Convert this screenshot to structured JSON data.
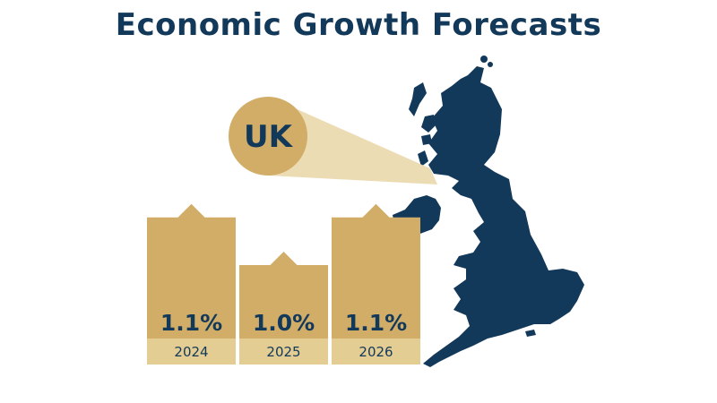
{
  "title": "Economic Growth Forecasts",
  "region": "UK",
  "colors": {
    "title": "#12385a",
    "bar": "#d1ad68",
    "bar_label_band": "#e3cd92",
    "map": "#12385a",
    "callout": "#d1ad68",
    "callout_beam": "#ecdcb4"
  },
  "chart_data": {
    "type": "bar",
    "title": "Economic Growth Forecasts",
    "categories": [
      "2024",
      "2025",
      "2026"
    ],
    "values": [
      1.1,
      1.0,
      1.1
    ],
    "value_labels": [
      "1.1%",
      "1.0%",
      "1.1%"
    ],
    "unit": "%",
    "region": "UK",
    "grid": false,
    "legend": "none"
  }
}
